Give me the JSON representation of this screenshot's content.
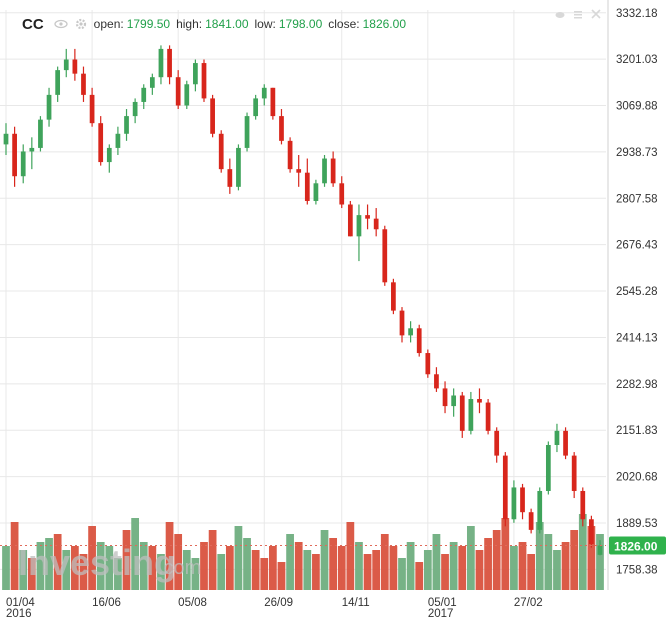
{
  "header": {
    "symbol": "CC",
    "open_label": "open:",
    "open_value": "1799.50",
    "high_label": "high:",
    "high_value": "1841.00",
    "low_label": "low:",
    "low_value": "1798.00",
    "close_label": "close:",
    "close_value": "1826.00"
  },
  "watermark": {
    "brand": "Investing",
    "suffix": ".com"
  },
  "colors": {
    "up": "#3fa35b",
    "down": "#d8261c",
    "vol_up": "#6fae80",
    "vol_down": "#d9523e",
    "grid": "#e8e8e8",
    "last_price_bg": "#2fb24c",
    "axis_text": "#333333"
  },
  "chart_data": {
    "type": "candlestick",
    "ylim": [
      1700,
      3340
    ],
    "y_ticks": [
      "3332.18",
      "3201.03",
      "3069.88",
      "2938.73",
      "2807.58",
      "2676.43",
      "2545.28",
      "2414.13",
      "2282.98",
      "2151.83",
      "2020.68",
      "1889.53",
      "1758.38"
    ],
    "x_ticks": [
      "01/04",
      "16/06",
      "05/08",
      "26/09",
      "14/11",
      "05/01",
      "27/02"
    ],
    "x_years": [
      "2016",
      "2017"
    ],
    "last_price": "1826.00",
    "ohlc": [
      [
        2960,
        3020,
        2930,
        2990
      ],
      [
        2990,
        3010,
        2840,
        2870
      ],
      [
        2870,
        2960,
        2850,
        2940
      ],
      [
        2940,
        2980,
        2890,
        2950
      ],
      [
        2950,
        3040,
        2940,
        3030
      ],
      [
        3030,
        3120,
        3010,
        3100
      ],
      [
        3100,
        3180,
        3080,
        3170
      ],
      [
        3170,
        3230,
        3150,
        3200
      ],
      [
        3200,
        3230,
        3140,
        3160
      ],
      [
        3160,
        3180,
        3080,
        3100
      ],
      [
        3100,
        3120,
        3010,
        3020
      ],
      [
        3020,
        3040,
        2900,
        2910
      ],
      [
        2910,
        2960,
        2880,
        2950
      ],
      [
        2950,
        3010,
        2930,
        2990
      ],
      [
        2990,
        3060,
        2970,
        3040
      ],
      [
        3040,
        3090,
        3020,
        3080
      ],
      [
        3080,
        3130,
        3060,
        3120
      ],
      [
        3120,
        3160,
        3100,
        3150
      ],
      [
        3150,
        3240,
        3130,
        3230
      ],
      [
        3230,
        3240,
        3130,
        3150
      ],
      [
        3150,
        3170,
        3060,
        3070
      ],
      [
        3070,
        3140,
        3060,
        3130
      ],
      [
        3130,
        3200,
        3110,
        3190
      ],
      [
        3190,
        3200,
        3080,
        3090
      ],
      [
        3090,
        3100,
        2980,
        2990
      ],
      [
        2990,
        3000,
        2880,
        2890
      ],
      [
        2890,
        2920,
        2820,
        2840
      ],
      [
        2840,
        2960,
        2830,
        2950
      ],
      [
        2950,
        3050,
        2940,
        3040
      ],
      [
        3040,
        3100,
        3030,
        3090
      ],
      [
        3090,
        3130,
        3070,
        3120
      ],
      [
        3120,
        3120,
        3030,
        3040
      ],
      [
        3040,
        3060,
        2960,
        2970
      ],
      [
        2970,
        2980,
        2880,
        2890
      ],
      [
        2890,
        2930,
        2840,
        2880
      ],
      [
        2880,
        2920,
        2790,
        2800
      ],
      [
        2800,
        2860,
        2790,
        2850
      ],
      [
        2850,
        2930,
        2840,
        2920
      ],
      [
        2920,
        2940,
        2840,
        2850
      ],
      [
        2850,
        2870,
        2780,
        2790
      ],
      [
        2790,
        2800,
        2700,
        2700
      ],
      [
        2700,
        2790,
        2630,
        2760
      ],
      [
        2760,
        2790,
        2720,
        2750
      ],
      [
        2750,
        2780,
        2700,
        2720
      ],
      [
        2720,
        2730,
        2560,
        2570
      ],
      [
        2570,
        2580,
        2480,
        2490
      ],
      [
        2490,
        2500,
        2400,
        2420
      ],
      [
        2420,
        2460,
        2400,
        2440
      ],
      [
        2440,
        2450,
        2360,
        2370
      ],
      [
        2370,
        2380,
        2300,
        2310
      ],
      [
        2310,
        2330,
        2260,
        2270
      ],
      [
        2270,
        2290,
        2200,
        2220
      ],
      [
        2220,
        2270,
        2190,
        2250
      ],
      [
        2250,
        2260,
        2130,
        2150
      ],
      [
        2150,
        2260,
        2140,
        2240
      ],
      [
        2240,
        2270,
        2200,
        2230
      ],
      [
        2230,
        2240,
        2140,
        2150
      ],
      [
        2150,
        2160,
        2060,
        2080
      ],
      [
        2080,
        2090,
        1880,
        1900
      ],
      [
        1900,
        2010,
        1890,
        1990
      ],
      [
        1990,
        2000,
        1900,
        1920
      ],
      [
        1920,
        1930,
        1860,
        1870
      ],
      [
        1870,
        1990,
        1860,
        1980
      ],
      [
        1980,
        2120,
        1970,
        2110
      ],
      [
        2110,
        2170,
        2090,
        2150
      ],
      [
        2150,
        2160,
        2070,
        2080
      ],
      [
        2080,
        2090,
        1960,
        1980
      ],
      [
        1980,
        1990,
        1880,
        1900
      ],
      [
        1900,
        1910,
        1820,
        1830
      ],
      [
        1799.5,
        1841,
        1798,
        1826
      ]
    ],
    "volume": [
      [
        0.55,
        1
      ],
      [
        0.85,
        0
      ],
      [
        0.5,
        1
      ],
      [
        0.4,
        0
      ],
      [
        0.6,
        1
      ],
      [
        0.65,
        1
      ],
      [
        0.7,
        0
      ],
      [
        0.5,
        1
      ],
      [
        0.55,
        0
      ],
      [
        0.45,
        0
      ],
      [
        0.8,
        0
      ],
      [
        0.6,
        1
      ],
      [
        0.55,
        1
      ],
      [
        0.4,
        1
      ],
      [
        0.75,
        0
      ],
      [
        0.9,
        1
      ],
      [
        0.6,
        1
      ],
      [
        0.55,
        0
      ],
      [
        0.45,
        1
      ],
      [
        0.85,
        0
      ],
      [
        0.7,
        0
      ],
      [
        0.5,
        1
      ],
      [
        0.4,
        1
      ],
      [
        0.6,
        0
      ],
      [
        0.75,
        0
      ],
      [
        0.45,
        1
      ],
      [
        0.55,
        0
      ],
      [
        0.8,
        1
      ],
      [
        0.65,
        1
      ],
      [
        0.5,
        0
      ],
      [
        0.4,
        0
      ],
      [
        0.55,
        0
      ],
      [
        0.35,
        0
      ],
      [
        0.7,
        1
      ],
      [
        0.6,
        0
      ],
      [
        0.5,
        1
      ],
      [
        0.45,
        0
      ],
      [
        0.75,
        1
      ],
      [
        0.65,
        0
      ],
      [
        0.55,
        0
      ],
      [
        0.85,
        0
      ],
      [
        0.6,
        1
      ],
      [
        0.45,
        0
      ],
      [
        0.5,
        0
      ],
      [
        0.7,
        0
      ],
      [
        0.55,
        0
      ],
      [
        0.4,
        1
      ],
      [
        0.6,
        1
      ],
      [
        0.35,
        0
      ],
      [
        0.5,
        1
      ],
      [
        0.7,
        1
      ],
      [
        0.45,
        0
      ],
      [
        0.6,
        1
      ],
      [
        0.55,
        0
      ],
      [
        0.8,
        1
      ],
      [
        0.5,
        0
      ],
      [
        0.65,
        0
      ],
      [
        0.75,
        0
      ],
      [
        0.9,
        0
      ],
      [
        0.55,
        1
      ],
      [
        0.6,
        0
      ],
      [
        0.45,
        0
      ],
      [
        0.85,
        1
      ],
      [
        0.7,
        1
      ],
      [
        0.5,
        1
      ],
      [
        0.6,
        0
      ],
      [
        0.75,
        0
      ],
      [
        0.95,
        1
      ],
      [
        0.8,
        0
      ],
      [
        0.7,
        1
      ]
    ]
  }
}
